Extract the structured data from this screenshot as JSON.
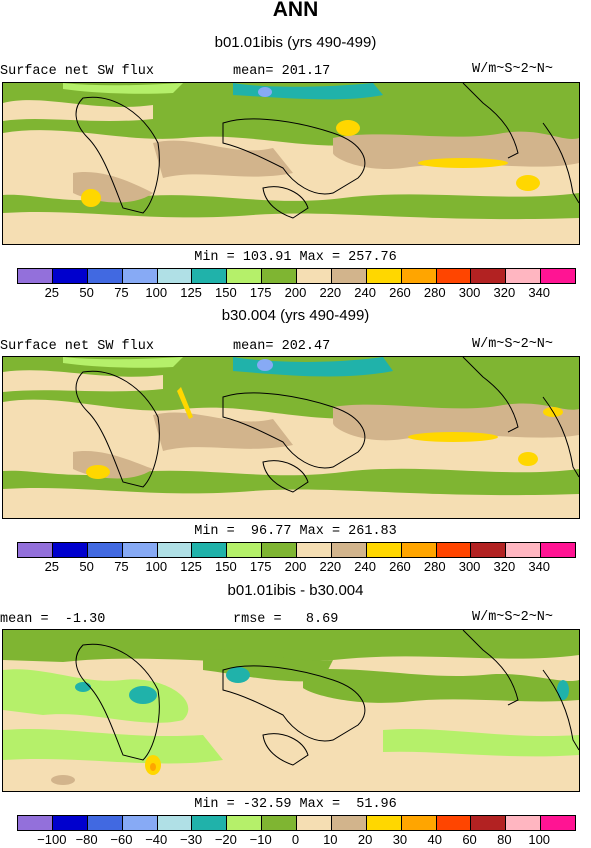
{
  "title": "ANN",
  "panels": [
    {
      "subtitle": "b01.01ibis (yrs 490-499)",
      "left_label": "Surface net SW flux",
      "center_label": "mean= 201.17",
      "right_label": "W/m~S~2~N~",
      "minmax": "Min = 103.91 Max = 257.76"
    },
    {
      "subtitle": "b30.004 (yrs 490-499)",
      "left_label": "Surface net SW flux",
      "center_label": "mean= 202.47",
      "right_label": "W/m~S~2~N~",
      "minmax": "Min =  96.77 Max = 261.83"
    },
    {
      "subtitle": "b01.01ibis - b30.004",
      "left_label": "mean =  -1.30",
      "center_label": "rmse =   8.69",
      "right_label": "W/m~S~2~N~",
      "minmax": "Min = -32.59 Max =  51.96"
    }
  ],
  "colorbar_colors": [
    "#9370db",
    "#0000cd",
    "#4169e1",
    "#87aaf5",
    "#b0e0e6",
    "#20b2aa",
    "#b5f06a",
    "#7fb532",
    "#f5deb3",
    "#d2b48c",
    "#ffd700",
    "#ffa500",
    "#ff4500",
    "#b22222",
    "#ffb6c1",
    "#ff1493"
  ],
  "abs_ticks": [
    "25",
    "50",
    "75",
    "100",
    "125",
    "150",
    "175",
    "200",
    "220",
    "240",
    "260",
    "280",
    "300",
    "320",
    "340"
  ],
  "diff_ticks": [
    "−100",
    "−80",
    "−60",
    "−40",
    "−30",
    "−20",
    "−10",
    "0",
    "10",
    "20",
    "30",
    "40",
    "60",
    "80",
    "100"
  ],
  "field_colors": {
    "green": "#7fb532",
    "light_green": "#b5f06a",
    "wheat": "#f5deb3",
    "tan": "#d2b48c",
    "gold": "#ffd700",
    "teal": "#20b2aa",
    "blue": "#87aaf5",
    "powder": "#b0e0e6",
    "orange": "#ffa500"
  }
}
